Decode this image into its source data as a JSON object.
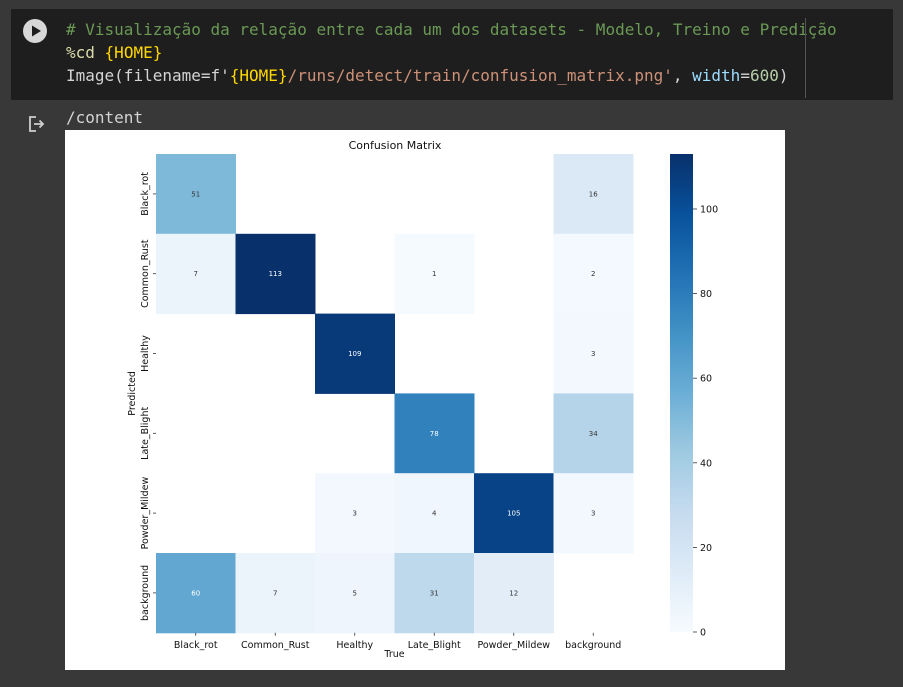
{
  "code_cell": {
    "line1_comment": "# Visualização da relação entre cada um dos datasets - Modelo, Treino e Predição",
    "line2_magic": "%cd",
    "line2_arg": "{HOME}",
    "line3_fn": "Image",
    "line3_open": "(filename=f'",
    "line3_brace": "{HOME}",
    "line3_str": "/runs/detect/train/confusion_matrix.png'",
    "line3_sep": ", ",
    "line3_kw": "width",
    "line3_eq": "=",
    "line3_num": "600",
    "line3_close": ")"
  },
  "output": {
    "text": "/content"
  },
  "icons": {
    "run": "play-icon",
    "output": "output-arrow-icon"
  },
  "colors": {
    "cell_bg": "#1e1e1e",
    "page_bg": "#383838",
    "comment": "#6a9955",
    "string": "#ce9178",
    "number": "#b5cea8",
    "colormap_low": "#f7fbff",
    "colormap_high": "#08306b"
  },
  "chart_data": {
    "type": "heatmap",
    "title": "Confusion Matrix",
    "xlabel": "True",
    "ylabel": "Predicted",
    "x_categories": [
      "Black_rot",
      "Common_Rust",
      "Healthy",
      "Late_Blight",
      "Powder_Mildew",
      "background"
    ],
    "y_categories": [
      "Black_rot",
      "Common_Rust",
      "Healthy",
      "Late_Blight",
      "Powder_Mildew",
      "background"
    ],
    "values": [
      [
        51,
        null,
        null,
        null,
        null,
        16
      ],
      [
        7,
        113,
        null,
        1,
        null,
        2
      ],
      [
        null,
        null,
        109,
        null,
        null,
        3
      ],
      [
        null,
        null,
        null,
        78,
        null,
        34
      ],
      [
        null,
        null,
        3,
        4,
        105,
        3
      ],
      [
        60,
        7,
        5,
        31,
        12,
        null
      ]
    ],
    "colorbar": {
      "min": 0,
      "max": 113,
      "ticks": [
        0,
        20,
        40,
        60,
        80,
        100
      ]
    },
    "colormap": "Blues"
  }
}
